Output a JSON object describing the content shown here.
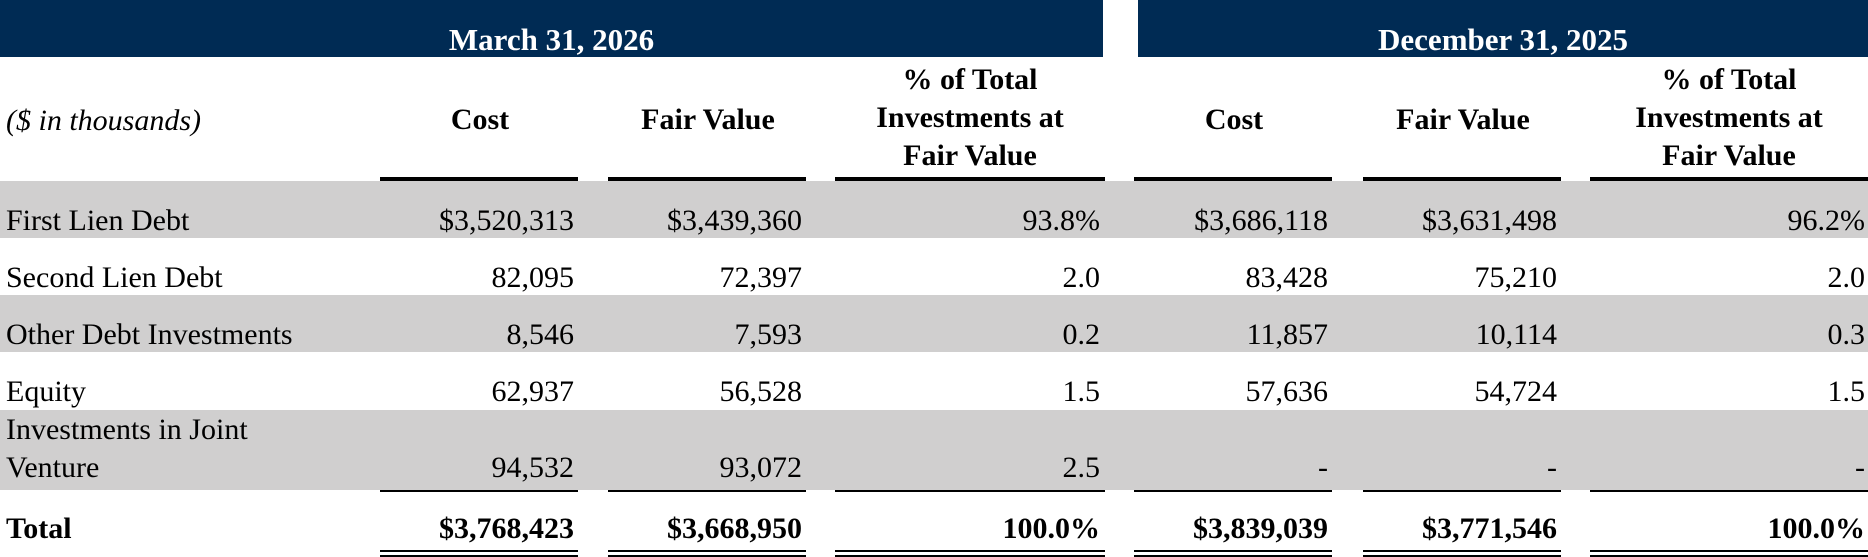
{
  "periods": [
    {
      "title": "March 31, 2026"
    },
    {
      "title": "December 31, 2025"
    }
  ],
  "units_label": "($ in thousands)",
  "columns": {
    "cost": "Cost",
    "fair_value": "Fair Value",
    "pct": [
      "% of Total",
      "Investments at",
      "Fair Value"
    ]
  },
  "rows": [
    {
      "label": [
        "First Lien Debt"
      ],
      "values": [
        "$3,520,313",
        "$3,439,360",
        "93.8%",
        "$3,686,118",
        "$3,631,498",
        "96.2%"
      ]
    },
    {
      "label": [
        "Second Lien Debt"
      ],
      "values": [
        "82,095",
        "72,397",
        "2.0",
        "83,428",
        "75,210",
        "2.0"
      ]
    },
    {
      "label": [
        "Other Debt Investments"
      ],
      "values": [
        "8,546",
        "7,593",
        "0.2",
        "11,857",
        "10,114",
        "0.3"
      ]
    },
    {
      "label": [
        "Equity"
      ],
      "values": [
        "62,937",
        "56,528",
        "1.5",
        "57,636",
        "54,724",
        "1.5"
      ]
    },
    {
      "label": [
        "Investments in Joint",
        "Venture"
      ],
      "values": [
        "94,532",
        "93,072",
        "2.5",
        "-",
        "-",
        "-"
      ]
    }
  ],
  "total": {
    "label": "Total",
    "values": [
      "$3,768,423",
      "$3,668,950",
      "100.0%",
      "$3,839,039",
      "$3,771,546",
      "100.0%"
    ]
  },
  "colors": {
    "banner": "#002b54",
    "row_shade": "#d0cfcf"
  }
}
